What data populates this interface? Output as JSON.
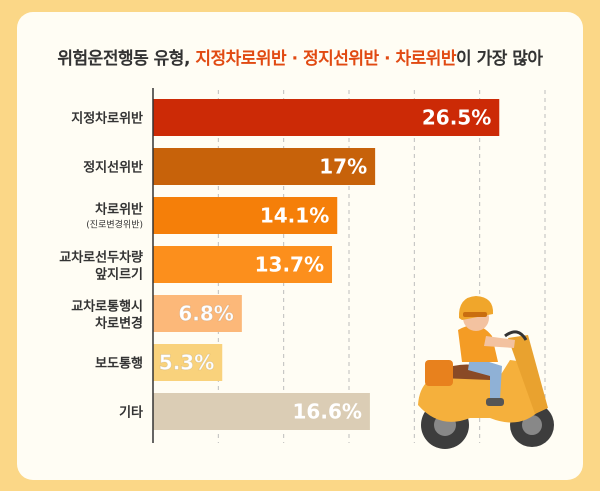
{
  "title": {
    "prefix": "위험운전행동 유형, ",
    "highlight": "지정차로위반 · 정지선위반 · 차로위반",
    "suffix": "이 가장 많아"
  },
  "chart_data": {
    "type": "bar",
    "orientation": "horizontal",
    "title": "위험운전행동 유형, 지정차로위반 · 정지선위반 · 차로위반이 가장 많아",
    "categories": [
      [
        "지정차로위반"
      ],
      [
        "정지선위반"
      ],
      [
        "차로위반",
        "(진로변경위반)"
      ],
      [
        "교차로선두차량",
        "앞지르기"
      ],
      [
        "교차로통행시",
        "차로변경"
      ],
      [
        "보도통행"
      ],
      [
        "기타"
      ]
    ],
    "values": [
      26.5,
      17,
      14.1,
      13.7,
      6.8,
      5.3,
      16.6
    ],
    "value_labels": [
      "26.5%",
      "17%",
      "14.1%",
      "13.7%",
      "6.8%",
      "5.3%",
      "16.6%"
    ],
    "colors": [
      "#cc2a06",
      "#c7620a",
      "#f57f09",
      "#fc8f1c",
      "#fcb879",
      "#f9d27c",
      "#dbcdb5"
    ],
    "xlim": [
      0,
      30
    ],
    "grid": true
  }
}
